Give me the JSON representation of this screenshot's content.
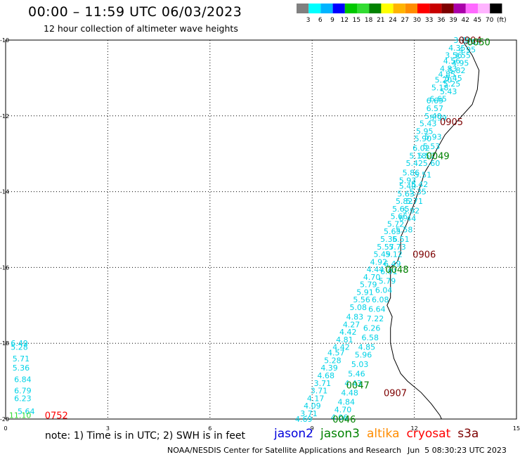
{
  "header": {
    "title": "00:00 – 11:59 UTC 06/03/2023",
    "subtitle": "12 hour collection of altimeter wave heights"
  },
  "colorbar": {
    "colors": [
      "#808080",
      "#00ffff",
      "#00b4ff",
      "#0000ff",
      "#00c800",
      "#32dc32",
      "#008200",
      "#ffff00",
      "#ffb400",
      "#ff8c00",
      "#ff0000",
      "#c80000",
      "#7d0000",
      "#aa00aa",
      "#ff69ff",
      "#ffb4ff",
      "#000000"
    ],
    "labels": [
      "3",
      "6",
      "9",
      "12",
      "15",
      "18",
      "21",
      "24",
      "27",
      "30",
      "33",
      "36",
      "39",
      "42",
      "45",
      "70",
      "(ft)"
    ]
  },
  "chart_data": {
    "type": "scatter",
    "xlim": [
      0,
      15
    ],
    "ylim": [
      -20,
      -10
    ],
    "x_ticks": [
      "0",
      "3",
      "6",
      "9",
      "12",
      "15"
    ],
    "y_ticks": [
      "-10",
      "-12",
      "-14",
      "-16",
      "-18",
      "-20"
    ],
    "grid": true,
    "coastline": [
      [
        13.4,
        -10
      ],
      [
        13.7,
        -10.4
      ],
      [
        13.9,
        -10.8
      ],
      [
        13.85,
        -11.3
      ],
      [
        13.7,
        -11.7
      ],
      [
        13.3,
        -12.1
      ],
      [
        12.9,
        -12.5
      ],
      [
        12.65,
        -12.9
      ],
      [
        12.5,
        -13.2
      ],
      [
        12.3,
        -13.5
      ],
      [
        12.2,
        -13.8
      ],
      [
        12.0,
        -14.3
      ],
      [
        11.8,
        -14.8
      ],
      [
        11.6,
        -15.2
      ],
      [
        11.6,
        -15.6
      ],
      [
        11.5,
        -15.85
      ],
      [
        11.3,
        -16.0
      ],
      [
        11.3,
        -16.5
      ],
      [
        11.3,
        -16.8
      ],
      [
        11.2,
        -17.0
      ],
      [
        11.35,
        -17.3
      ],
      [
        11.3,
        -17.6
      ],
      [
        11.3,
        -18.0
      ],
      [
        11.4,
        -18.4
      ],
      [
        11.6,
        -18.8
      ],
      [
        11.8,
        -19.0
      ],
      [
        12.2,
        -19.3
      ],
      [
        12.5,
        -19.6
      ],
      [
        12.75,
        -19.9
      ],
      [
        12.8,
        -20
      ]
    ],
    "time_labels": [
      {
        "text": "0904",
        "x": 13.3,
        "y": -10.0,
        "color": "#7d0000"
      },
      {
        "text": "0050",
        "x": 13.55,
        "y": -10.05,
        "color": "#008200"
      },
      {
        "text": "0905",
        "x": 12.75,
        "y": -12.15,
        "color": "#7d0000"
      },
      {
        "text": "0049",
        "x": 12.35,
        "y": -13.05,
        "color": "#008200"
      },
      {
        "text": "0906",
        "x": 11.95,
        "y": -15.65,
        "color": "#7d0000"
      },
      {
        "text": "0048",
        "x": 11.15,
        "y": -16.05,
        "color": "#008200"
      },
      {
        "text": "0907",
        "x": 11.1,
        "y": -19.3,
        "color": "#7d0000"
      },
      {
        "text": "0047",
        "x": 10.0,
        "y": -19.1,
        "color": "#008200"
      },
      {
        "text": "0046",
        "x": 9.6,
        "y": -20.0,
        "color": "#008200"
      },
      {
        "text": "0752",
        "x": 1.15,
        "y": -19.9,
        "color": "#ff0000"
      }
    ],
    "wave_heights": [
      {
        "v": "3.70",
        "x": 13.15,
        "y": -10.0
      },
      {
        "v": "4.69",
        "x": 13.45,
        "y": -10.05
      },
      {
        "v": "4.35",
        "x": 13.0,
        "y": -10.2
      },
      {
        "v": "4.95",
        "x": 13.3,
        "y": -10.25
      },
      {
        "v": "3.56",
        "x": 12.9,
        "y": -10.4
      },
      {
        "v": "3.55",
        "x": 13.15,
        "y": -10.4
      },
      {
        "v": "4.56",
        "x": 12.85,
        "y": -10.55
      },
      {
        "v": "4.95",
        "x": 13.1,
        "y": -10.6
      },
      {
        "v": "4.83",
        "x": 12.75,
        "y": -10.75
      },
      {
        "v": "5.82",
        "x": 13.0,
        "y": -10.8
      },
      {
        "v": "4.85",
        "x": 12.7,
        "y": -10.9
      },
      {
        "v": "5.45",
        "x": 12.9,
        "y": -11.0
      },
      {
        "v": "5.20",
        "x": 12.6,
        "y": -11.05
      },
      {
        "v": "5.25",
        "x": 12.85,
        "y": -11.15
      },
      {
        "v": "5.18",
        "x": 12.5,
        "y": -11.25
      },
      {
        "v": "5.43",
        "x": 12.75,
        "y": -11.35
      },
      {
        "v": "6.69",
        "x": 12.35,
        "y": -11.6
      },
      {
        "v": "6.65",
        "x": 12.45,
        "y": -11.55
      },
      {
        "v": "6.57",
        "x": 12.35,
        "y": -11.8
      },
      {
        "v": "5.40",
        "x": 12.3,
        "y": -12.0
      },
      {
        "v": "5.99",
        "x": 12.45,
        "y": -12.05
      },
      {
        "v": "5.43",
        "x": 12.15,
        "y": -12.2
      },
      {
        "v": "5.95",
        "x": 12.05,
        "y": -12.4
      },
      {
        "v": "5.93",
        "x": 12.3,
        "y": -12.55
      },
      {
        "v": "5.90",
        "x": 12.0,
        "y": -12.6
      },
      {
        "v": "5.53",
        "x": 12.25,
        "y": -12.8
      },
      {
        "v": "6.02",
        "x": 11.95,
        "y": -12.85
      },
      {
        "v": "5.18",
        "x": 11.85,
        "y": -13.05
      },
      {
        "v": "5.57",
        "x": 12.1,
        "y": -13.05
      },
      {
        "v": "5.60",
        "x": 12.25,
        "y": -13.25
      },
      {
        "v": "5.42",
        "x": 11.75,
        "y": -13.25
      },
      {
        "v": "5.86",
        "x": 11.65,
        "y": -13.5
      },
      {
        "v": "5.51",
        "x": 12.0,
        "y": -13.55
      },
      {
        "v": "5.93",
        "x": 11.55,
        "y": -13.7
      },
      {
        "v": "5.42",
        "x": 11.9,
        "y": -13.8
      },
      {
        "v": "5.40",
        "x": 11.55,
        "y": -13.85
      },
      {
        "v": "5.63",
        "x": 11.5,
        "y": -14.05
      },
      {
        "v": "5.35",
        "x": 11.85,
        "y": -14.0
      },
      {
        "v": "5.82",
        "x": 11.45,
        "y": -14.25
      },
      {
        "v": "5.71",
        "x": 11.75,
        "y": -14.25
      },
      {
        "v": "5.65",
        "x": 11.35,
        "y": -14.45
      },
      {
        "v": "5.92",
        "x": 11.65,
        "y": -14.5
      },
      {
        "v": "5.66",
        "x": 11.3,
        "y": -14.65
      },
      {
        "v": "6.44",
        "x": 11.55,
        "y": -14.7
      },
      {
        "v": "5.72",
        "x": 11.2,
        "y": -14.85
      },
      {
        "v": "5.65",
        "x": 11.1,
        "y": -15.05
      },
      {
        "v": "5.58",
        "x": 11.45,
        "y": -15.0
      },
      {
        "v": "5.36",
        "x": 11.0,
        "y": -15.25
      },
      {
        "v": "5.51",
        "x": 11.35,
        "y": -15.25
      },
      {
        "v": "5.57",
        "x": 10.9,
        "y": -15.45
      },
      {
        "v": "5.73",
        "x": 11.25,
        "y": -15.45
      },
      {
        "v": "5.49",
        "x": 10.8,
        "y": -15.65
      },
      {
        "v": "5.12",
        "x": 11.15,
        "y": -15.65
      },
      {
        "v": "4.92",
        "x": 10.7,
        "y": -15.85
      },
      {
        "v": "6.49",
        "x": 11.1,
        "y": -15.9
      },
      {
        "v": "4.44",
        "x": 10.6,
        "y": -16.05
      },
      {
        "v": "6.01",
        "x": 11.0,
        "y": -16.1
      },
      {
        "v": "4.70",
        "x": 10.5,
        "y": -16.25
      },
      {
        "v": "5.79",
        "x": 10.4,
        "y": -16.45
      },
      {
        "v": "5.79",
        "x": 10.95,
        "y": -16.35
      },
      {
        "v": "5.91",
        "x": 10.3,
        "y": -16.65
      },
      {
        "v": "6.04",
        "x": 10.85,
        "y": -16.6
      },
      {
        "v": "5.56",
        "x": 10.2,
        "y": -16.85
      },
      {
        "v": "6.08",
        "x": 10.75,
        "y": -16.85
      },
      {
        "v": "5.08",
        "x": 10.1,
        "y": -17.05
      },
      {
        "v": "6.64",
        "x": 10.65,
        "y": -17.1
      },
      {
        "v": "4.83",
        "x": 10.0,
        "y": -17.3
      },
      {
        "v": "7.22",
        "x": 10.6,
        "y": -17.35
      },
      {
        "v": "4.27",
        "x": 9.9,
        "y": -17.5
      },
      {
        "v": "6.26",
        "x": 10.5,
        "y": -17.6
      },
      {
        "v": "4.42",
        "x": 9.8,
        "y": -17.7
      },
      {
        "v": "6.58",
        "x": 10.45,
        "y": -17.85
      },
      {
        "v": "4.81",
        "x": 9.7,
        "y": -17.9
      },
      {
        "v": "4.42",
        "x": 9.6,
        "y": -18.1
      },
      {
        "v": "4.85",
        "x": 10.35,
        "y": -18.1
      },
      {
        "v": "4.57",
        "x": 9.45,
        "y": -18.25
      },
      {
        "v": "5.96",
        "x": 10.25,
        "y": -18.3
      },
      {
        "v": "5.28",
        "x": 9.35,
        "y": -18.45
      },
      {
        "v": "5.03",
        "x": 10.15,
        "y": -18.55
      },
      {
        "v": "4.39",
        "x": 9.25,
        "y": -18.65
      },
      {
        "v": "5.46",
        "x": 10.05,
        "y": -18.8
      },
      {
        "v": "4.68",
        "x": 9.15,
        "y": -18.85
      },
      {
        "v": "4.43",
        "x": 9.95,
        "y": -19.05
      },
      {
        "v": "3.71",
        "x": 9.05,
        "y": -19.05
      },
      {
        "v": "3.71",
        "x": 8.95,
        "y": -19.25
      },
      {
        "v": "4.48",
        "x": 9.85,
        "y": -19.3
      },
      {
        "v": "4.17",
        "x": 8.85,
        "y": -19.45
      },
      {
        "v": "4.84",
        "x": 9.75,
        "y": -19.55
      },
      {
        "v": "4.09",
        "x": 8.75,
        "y": -19.65
      },
      {
        "v": "4.70",
        "x": 9.65,
        "y": -19.75
      },
      {
        "v": "3.71",
        "x": 8.65,
        "y": -19.85
      },
      {
        "v": "4.06",
        "x": 9.55,
        "y": -19.95
      },
      {
        "v": "4.69",
        "x": 8.5,
        "y": -20.0
      },
      {
        "v": "6.49",
        "x": 0.15,
        "y": -18.0
      },
      {
        "v": "5.28",
        "x": 0.15,
        "y": -18.1
      },
      {
        "v": "5.71",
        "x": 0.2,
        "y": -18.4
      },
      {
        "v": "5.36",
        "x": 0.2,
        "y": -18.65
      },
      {
        "v": "6.84",
        "x": 0.25,
        "y": -18.95
      },
      {
        "v": "6.79",
        "x": 0.25,
        "y": -19.25
      },
      {
        "v": "6.23",
        "x": 0.25,
        "y": -19.45
      },
      {
        "v": "5.64",
        "x": 0.35,
        "y": -19.8
      }
    ],
    "wave_heights_green": [
      {
        "v": "11.10",
        "x": 0.1,
        "y": -19.9
      }
    ]
  },
  "footer": {
    "note": "note: 1) Time is in UTC; 2) SWH is in feet",
    "legend": [
      {
        "name": "jason2",
        "color": "#0000dc"
      },
      {
        "name": "jason3",
        "color": "#008200"
      },
      {
        "name": "altika",
        "color": "#ff8c00"
      },
      {
        "name": "cryosat",
        "color": "#ff0000"
      },
      {
        "name": "s3a",
        "color": "#7d0000"
      }
    ],
    "credit": "NOAA/NESDIS Center for Satellite Applications and Research",
    "timestamp": "Jun  5 08:30:23 UTC 2023"
  }
}
